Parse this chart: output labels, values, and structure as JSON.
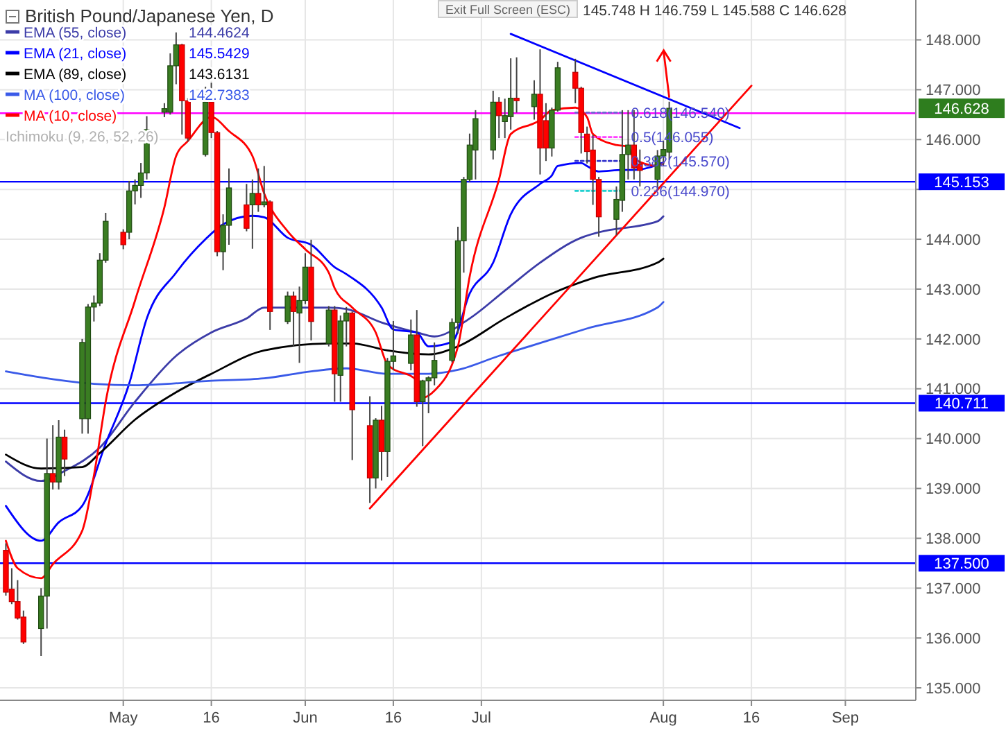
{
  "chart_data": {
    "type": "candlestick",
    "title": "British Pound/Japanese Yen, D",
    "x": [
      "--04-11",
      "--04-12",
      "--04-13",
      "--04-14",
      "--04-17",
      "--04-18",
      "--04-19",
      "--04-20",
      "--04-21",
      "--04-24",
      "--04-25",
      "--04-26",
      "--04-27",
      "--04-28",
      "--05-01",
      "--05-02",
      "--05-03",
      "--05-04",
      "--05-05",
      "--05-08",
      "--05-09",
      "--05-10",
      "--05-11",
      "--05-12",
      "--05-15",
      "--05-16",
      "--05-17",
      "--05-18",
      "--05-19",
      "--05-22",
      "--05-23",
      "--05-24",
      "--05-25",
      "--05-26",
      "--05-29",
      "--05-30",
      "--05-31",
      "--06-01",
      "--06-02",
      "--06-05",
      "--06-06",
      "--06-07",
      "--06-08",
      "--06-09",
      "--06-12",
      "--06-13",
      "--06-14",
      "--06-15",
      "--06-16",
      "--06-19",
      "--06-20",
      "--06-21",
      "--06-22",
      "--06-23",
      "--06-26",
      "--06-27",
      "--06-28",
      "--06-29",
      "--06-30",
      "--07-03",
      "--07-04",
      "--07-05",
      "--07-06",
      "--07-07",
      "--07-10",
      "--07-11",
      "--07-12",
      "--07-13",
      "--07-14",
      "--07-17",
      "--07-18",
      "--07-19",
      "--07-20",
      "--07-21",
      "--07-24",
      "--07-25",
      "--07-26",
      "--07-27",
      "--07-28",
      "--07-31",
      "--08-01",
      "--08-02"
    ],
    "ohlc": [
      [
        137.76,
        137.9,
        136.85,
        136.92
      ],
      [
        136.98,
        137.4,
        136.68,
        136.73
      ],
      [
        136.73,
        137.16,
        136.37,
        136.4
      ],
      [
        136.42,
        136.55,
        135.88,
        135.92
      ],
      [
        136.19,
        137.0,
        135.64,
        136.84
      ],
      [
        136.84,
        140.0,
        136.19,
        139.3
      ],
      [
        139.3,
        140.27,
        138.98,
        139.13
      ],
      [
        139.13,
        140.37,
        138.98,
        140.03
      ],
      [
        140.03,
        140.18,
        139.25,
        139.59
      ],
      [
        140.4,
        142.0,
        140.1,
        141.93
      ],
      [
        140.4,
        142.7,
        140.1,
        142.64
      ],
      [
        142.64,
        142.87,
        142.35,
        142.72
      ],
      [
        142.72,
        143.72,
        142.66,
        143.58
      ],
      [
        143.58,
        144.53,
        143.53,
        144.36
      ],
      [
        144.14,
        144.2,
        143.8,
        143.89
      ],
      [
        144.14,
        145.17,
        144.0,
        144.97
      ],
      [
        144.97,
        145.2,
        144.7,
        145.08
      ],
      [
        145.08,
        145.53,
        144.83,
        145.33
      ],
      [
        145.33,
        146.47,
        145.2,
        146.2
      ],
      [
        146.55,
        146.73,
        146.45,
        146.62
      ],
      [
        146.55,
        147.73,
        146.5,
        147.48
      ],
      [
        147.48,
        148.15,
        147.11,
        147.9
      ],
      [
        147.9,
        147.92,
        146.1,
        146.78
      ],
      [
        146.78,
        146.83,
        145.96,
        146.03
      ],
      [
        145.7,
        147.06,
        145.66,
        146.75
      ],
      [
        146.75,
        147.14,
        146.03,
        146.14
      ],
      [
        146.14,
        146.17,
        143.66,
        143.75
      ],
      [
        143.75,
        144.5,
        143.38,
        144.28
      ],
      [
        144.28,
        145.42,
        143.89,
        145.03
      ],
      [
        144.69,
        145.11,
        144.16,
        144.22
      ],
      [
        144.69,
        145.2,
        143.81,
        144.92
      ],
      [
        144.92,
        145.42,
        144.55,
        144.69
      ],
      [
        144.69,
        145.47,
        144.64,
        144.75
      ],
      [
        144.75,
        144.78,
        142.18,
        142.55
      ],
      [
        142.35,
        142.95,
        142.3,
        142.86
      ],
      [
        142.86,
        142.95,
        141.85,
        142.55
      ],
      [
        142.52,
        143.05,
        141.52,
        142.77
      ],
      [
        142.77,
        143.72,
        142.7,
        143.44
      ],
      [
        143.44,
        143.99,
        141.97,
        142.35
      ],
      [
        141.91,
        142.66,
        141.85,
        142.58
      ],
      [
        142.58,
        142.66,
        140.74,
        141.3
      ],
      [
        141.27,
        142.47,
        140.74,
        142.36
      ],
      [
        142.36,
        142.64,
        141.85,
        142.52
      ],
      [
        142.52,
        142.55,
        139.57,
        140.58
      ],
      [
        140.26,
        140.85,
        138.71,
        139.21
      ],
      [
        139.21,
        140.41,
        139.0,
        140.37
      ],
      [
        140.37,
        140.66,
        139.16,
        139.74
      ],
      [
        139.74,
        141.62,
        139.23,
        141.55
      ],
      [
        141.55,
        142.36,
        141.37,
        141.66
      ],
      [
        141.51,
        142.39,
        141.37,
        142.08
      ],
      [
        142.08,
        142.58,
        140.64,
        140.74
      ],
      [
        140.74,
        141.18,
        139.85,
        141.16
      ],
      [
        141.16,
        141.25,
        140.51,
        141.22
      ],
      [
        141.22,
        141.93,
        141.07,
        141.57
      ],
      [
        141.57,
        142.41,
        141.53,
        142.33
      ],
      [
        142.33,
        144.25,
        142.11,
        143.97
      ],
      [
        143.97,
        145.25,
        143.33,
        145.2
      ],
      [
        145.2,
        146.12,
        145.15,
        145.89
      ],
      [
        145.79,
        146.59,
        145.2,
        146.42
      ],
      [
        145.79,
        146.98,
        145.6,
        146.75
      ],
      [
        146.75,
        146.85,
        146.03,
        146.48
      ],
      [
        146.36,
        146.82,
        146.03,
        146.48
      ],
      [
        146.46,
        147.63,
        146.2,
        146.83
      ],
      [
        146.83,
        147.65,
        146.54,
        146.78
      ],
      [
        146.66,
        147.19,
        146.4,
        146.91
      ],
      [
        146.91,
        147.81,
        145.3,
        145.83
      ],
      [
        146.38,
        146.73,
        145.57,
        145.83
      ],
      [
        145.83,
        146.64,
        145.66,
        146.59
      ],
      [
        146.59,
        147.56,
        146.56,
        147.44
      ],
      [
        147.35,
        147.62,
        146.73,
        147.03
      ],
      [
        147.03,
        147.06,
        145.72,
        146.14
      ],
      [
        146.11,
        146.26,
        145.52,
        145.76
      ],
      [
        145.79,
        146.09,
        144.69,
        145.2
      ],
      [
        145.2,
        145.25,
        144.05,
        144.45
      ],
      [
        144.4,
        145.06,
        144.08,
        144.8
      ],
      [
        144.78,
        146.59,
        144.55,
        145.7
      ],
      [
        145.7,
        146.59,
        145.2,
        145.89
      ],
      [
        145.89,
        146.59,
        145.2,
        145.43
      ],
      [
        145.51,
        145.8,
        145.06,
        145.38
      ],
      [
        145.2,
        145.79,
        145.0,
        145.67
      ],
      [
        145.67,
        145.98,
        145.47,
        145.8
      ],
      [
        145.748,
        146.759,
        145.588,
        146.628
      ]
    ],
    "series": [
      {
        "name": "EMA (55, close)",
        "type": "line",
        "color": "#3c3ca8",
        "x": [
          "--04-11",
          "--04-17",
          "--04-21",
          "--04-27",
          "--05-03",
          "--05-10",
          "--05-16",
          "--05-22",
          "--05-25",
          "--06-05",
          "--06-08",
          "--06-14",
          "--06-20",
          "--06-23",
          "--06-29",
          "--07-05",
          "--07-11",
          "--07-18",
          "--07-21",
          "--07-31",
          "--08-01"
        ],
        "values": [
          139.54,
          139.15,
          139.35,
          139.82,
          140.74,
          141.66,
          142.13,
          142.41,
          142.63,
          142.63,
          142.6,
          142.33,
          142.13,
          142.05,
          142.41,
          142.97,
          143.53,
          144.03,
          144.14,
          144.36,
          144.46
        ]
      },
      {
        "name": "EMA (21, close)",
        "type": "line",
        "color": "#0000ff",
        "x": [
          "--04-11",
          "--04-17",
          "--04-20",
          "--04-24",
          "--04-28",
          "--05-02",
          "--05-05",
          "--05-10",
          "--05-15",
          "--05-18",
          "--05-23",
          "--05-25",
          "--05-29",
          "--06-02",
          "--06-06",
          "--06-08",
          "--06-14",
          "--06-16",
          "--06-20",
          "--06-22",
          "--06-26",
          "--06-29",
          "--07-03",
          "--07-06",
          "--07-11",
          "--07-13",
          "--07-14",
          "--07-18",
          "--07-19",
          "--07-21",
          "--07-25",
          "--07-27",
          "--08-01"
        ],
        "values": [
          138.65,
          137.95,
          138.32,
          138.65,
          139.9,
          141.1,
          142.41,
          143.33,
          144.0,
          144.3,
          144.47,
          144.44,
          144.03,
          143.89,
          143.44,
          143.3,
          142.63,
          142.19,
          142.13,
          141.85,
          141.94,
          142.91,
          143.53,
          144.5,
          145.11,
          145.28,
          145.47,
          145.53,
          145.47,
          145.36,
          145.39,
          145.39,
          145.54
        ]
      },
      {
        "name": "EMA (89, close)",
        "type": "line",
        "color": "#000000",
        "x": [
          "--04-11",
          "--04-17",
          "--04-24",
          "--04-27",
          "--05-03",
          "--05-10",
          "--05-16",
          "--05-25",
          "--06-05",
          "--06-09",
          "--06-15",
          "--06-22",
          "--06-27",
          "--07-05",
          "--07-13",
          "--07-20",
          "--07-31",
          "--08-01"
        ],
        "values": [
          139.68,
          139.4,
          139.43,
          139.71,
          140.38,
          140.93,
          141.3,
          141.77,
          141.91,
          141.91,
          141.77,
          141.69,
          141.85,
          142.41,
          142.91,
          143.22,
          143.53,
          143.61
        ]
      },
      {
        "name": "MA (100, close)",
        "type": "line",
        "color": "#3a5ae8",
        "x": [
          "--04-11",
          "--04-18",
          "--04-26",
          "--05-03",
          "--05-16",
          "--05-25",
          "--06-02",
          "--06-08",
          "--06-15",
          "--06-22",
          "--06-27",
          "--07-04",
          "--07-10",
          "--07-19",
          "--07-31",
          "--08-01"
        ],
        "values": [
          141.35,
          141.21,
          141.1,
          141.07,
          141.16,
          141.21,
          141.35,
          141.41,
          141.3,
          141.3,
          141.38,
          141.66,
          141.88,
          142.21,
          142.63,
          142.74
        ]
      },
      {
        "name": "MA (10, close)",
        "type": "line",
        "color": "#ff0000",
        "x": [
          "--04-11",
          "--04-13",
          "--04-17",
          "--04-19",
          "--04-24",
          "--04-26",
          "--04-28",
          "--05-03",
          "--05-08",
          "--05-10",
          "--05-12",
          "--05-16",
          "--05-19",
          "--05-23",
          "--05-25",
          "--05-29",
          "--06-01",
          "--06-05",
          "--06-06",
          "--06-09",
          "--06-13",
          "--06-15",
          "--06-20",
          "--06-21",
          "--06-23",
          "--06-27",
          "--06-29",
          "--07-04",
          "--07-06",
          "--07-11",
          "--07-13",
          "--07-17",
          "--07-19",
          "--07-20",
          "--07-24",
          "--07-26",
          "--07-27",
          "--07-31",
          "--08-01"
        ],
        "values": [
          137.95,
          137.4,
          137.2,
          137.48,
          138.15,
          139.26,
          140.74,
          142.77,
          144.64,
          145.67,
          145.97,
          146.45,
          146.17,
          145.67,
          144.92,
          144.16,
          143.8,
          143.33,
          143.02,
          142.63,
          142.13,
          141.49,
          141.16,
          140.82,
          140.96,
          141.85,
          143.25,
          145.2,
          146.11,
          146.39,
          146.59,
          146.64,
          146.45,
          146.11,
          145.89,
          145.86,
          145.61,
          145.47,
          145.53
        ]
      },
      {
        "type": "line",
        "color": "#0000ff",
        "x": [
          "--07-06",
          "--08-14"
        ],
        "values": [
          148.12,
          146.23
        ]
      },
      {
        "type": "line",
        "color": "#ff0000",
        "x": [
          "--06-12",
          "--08-16"
        ],
        "values": [
          138.6,
          147.08
        ]
      },
      {
        "type": "line",
        "color": "#6a6ad0",
        "line_style": "dotted",
        "x": [
          "--07-17",
          "--07-25"
        ],
        "values": [
          146.54,
          146.54
        ]
      },
      {
        "type": "line",
        "color": "#ff40ff",
        "line_style": "dotted",
        "x": [
          "--07-17",
          "--07-25"
        ],
        "values": [
          146.05,
          146.05
        ]
      },
      {
        "type": "line",
        "color": "#3333cc",
        "line_style": "dotted",
        "x": [
          "--07-17",
          "--07-25"
        ],
        "values": [
          145.57,
          145.57
        ]
      },
      {
        "type": "line",
        "color": "#20d0d0",
        "line_style": "dotted",
        "x": [
          "--07-17",
          "--07-25"
        ],
        "values": [
          144.97,
          144.97
        ]
      }
    ],
    "ref_lines": [
      {
        "axis": "y",
        "value": 145.153,
        "label": "145.153",
        "color": "#0000ff"
      },
      {
        "axis": "y",
        "value": 140.711,
        "label": "140.711",
        "color": "#0000ff"
      },
      {
        "axis": "y",
        "value": 137.5,
        "label": "137.500",
        "color": "#0000ff"
      },
      {
        "axis": "y",
        "value": 146.53,
        "color": "#ff00ff"
      }
    ],
    "annotations": [
      "Exit Full Screen (ESC)",
      "145.748 H 146.759 L 145.588 C 146.628",
      "146.628",
      "Ichimoku (9, 26, 52, 26)",
      "144.4624",
      "145.5429",
      "143.6131",
      "142.7383",
      {
        "text": "0.618(146.540)",
        "x": "--07-26",
        "y": 146.54
      },
      {
        "text": "0.5(146.055)",
        "x": "--07-26",
        "y": 146.05
      },
      {
        "text": "0.382(145.570)",
        "x": "--07-26",
        "y": 145.57
      },
      {
        "text": "0.236(144.970)",
        "x": "--07-26",
        "y": 144.97
      }
    ],
    "xlim": [
      "--04-10",
      "--09-13"
    ],
    "xticks": [
      {
        "value": "--05-01",
        "label": "May"
      },
      {
        "value": "--05-16",
        "label": "16"
      },
      {
        "value": "--06-01",
        "label": "Jun"
      },
      {
        "value": "--06-16",
        "label": "16"
      },
      {
        "value": "--07-01",
        "label": "Jul"
      },
      {
        "value": "--08-01",
        "label": "Aug"
      },
      {
        "value": "--08-16",
        "label": "16"
      },
      {
        "value": "--09-01",
        "label": "Sep"
      }
    ],
    "ylim": [
      134.75,
      148.8
    ],
    "yticks": [
      {
        "value": 135,
        "label": "135.000"
      },
      {
        "value": 136,
        "label": "136.000"
      },
      {
        "value": 137,
        "label": "137.000"
      },
      {
        "value": 138,
        "label": "138.000"
      },
      {
        "value": 139,
        "label": "139.000"
      },
      {
        "value": 140,
        "label": "140.000"
      },
      {
        "value": 141,
        "label": "141.000"
      },
      {
        "value": 142,
        "label": "142.000"
      },
      {
        "value": 143,
        "label": "143.000"
      },
      {
        "value": 144,
        "label": "144.000"
      },
      {
        "value": 145,
        "label": null
      },
      {
        "value": 146,
        "label": "146.000"
      },
      {
        "value": 147,
        "label": "147.000"
      },
      {
        "value": 148,
        "label": "148.000"
      }
    ],
    "grid": true,
    "legend": "top left"
  }
}
